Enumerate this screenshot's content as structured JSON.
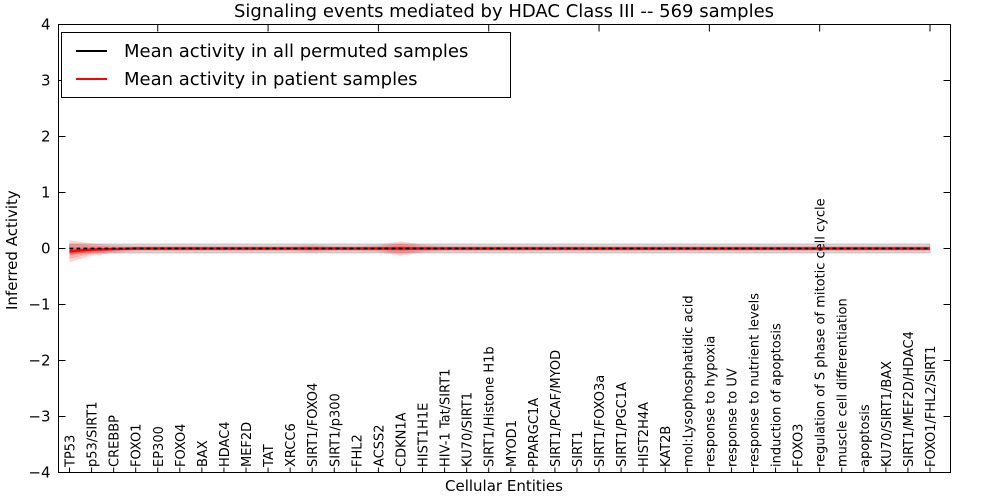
{
  "title": "Signaling events mediated by HDAC Class III -- 569 samples",
  "axes": {
    "xlabel": "Cellular Entities",
    "ylabel": "Inferred Activity"
  },
  "chart_data": {
    "type": "line",
    "title": "Signaling events mediated by HDAC Class III -- 569 samples",
    "xlabel": "Cellular Entities",
    "ylabel": "Inferred Activity",
    "ylim": [
      -4,
      4
    ],
    "ytick_values": [
      4,
      3,
      2,
      1,
      0,
      -1,
      -2,
      -3,
      -4
    ],
    "ytick_labels": [
      "4",
      "3",
      "2",
      "1",
      "0",
      "−1",
      "−2",
      "−3",
      "−4"
    ],
    "xtick_major_every": 5,
    "grid": false,
    "legend_position": "upper left",
    "categories": [
      "TP53",
      "p53/SIRT1",
      "CREBBP",
      "FOXO1",
      "EP300",
      "FOXO4",
      "BAX",
      "HDAC4",
      "MEF2D",
      "TAT",
      "XRCC6",
      "SIRT1/FOXO4",
      "SIRT1/p300",
      "FHL2",
      "ACSS2",
      "CDKN1A",
      "HIST1H1E",
      "HIV-1 Tat/SIRT1",
      "KU70/SIRT1",
      "SIRT1/Histone H1b",
      "MYOD1",
      "PPARGC1A",
      "SIRT1/PCAF/MYOD",
      "SIRT1",
      "SIRT1/FOXO3a",
      "SIRT1/PGC1A",
      "HIST2H4A",
      "KAT2B",
      "mol:Lysophosphatidic acid",
      "response to hypoxia",
      "response to UV",
      "response to nutrient levels",
      "induction of apoptosis",
      "FOXO3",
      "regulation of S phase of mitotic cell cycle",
      "muscle cell differentiation",
      "apoptosis",
      "KU70/SIRT1/BAX",
      "SIRT1/MEF2D/HDAC4",
      "FOXO1/FHL2/SIRT1"
    ],
    "series": [
      {
        "name": "Mean activity in all permuted samples",
        "color": "#000000",
        "line_style": "dashed",
        "values": [
          0,
          0,
          0,
          0,
          0,
          0,
          0,
          0,
          0,
          0,
          0,
          0,
          0,
          0,
          0,
          0,
          0,
          0,
          0,
          0,
          0,
          0,
          0,
          0,
          0,
          0,
          0,
          0,
          0,
          0,
          0,
          0,
          0,
          0,
          0,
          0,
          0,
          0,
          0,
          0
        ],
        "std_band": [
          0.08,
          0.08,
          0.08,
          0.08,
          0.08,
          0.08,
          0.08,
          0.08,
          0.08,
          0.08,
          0.08,
          0.08,
          0.08,
          0.08,
          0.08,
          0.08,
          0.08,
          0.08,
          0.08,
          0.08,
          0.08,
          0.08,
          0.08,
          0.08,
          0.08,
          0.08,
          0.08,
          0.08,
          0.08,
          0.08,
          0.08,
          0.08,
          0.08,
          0.08,
          0.08,
          0.08,
          0.08,
          0.08,
          0.08,
          0.08
        ]
      },
      {
        "name": "Mean activity in patient samples",
        "color": "#ff0000",
        "line_style": "solid",
        "values": [
          -0.05,
          -0.02,
          -0.01,
          0,
          0,
          0,
          0,
          0,
          0,
          0,
          0,
          0,
          0,
          0,
          0,
          0,
          0,
          0,
          0,
          0,
          0,
          0,
          0,
          0,
          0,
          0,
          0,
          0,
          0,
          0,
          0,
          0,
          0,
          0,
          0,
          0,
          0,
          0,
          0,
          0
        ],
        "std_band": [
          0.2,
          0.11,
          0.07,
          0.05,
          0.05,
          0.05,
          0.05,
          0.05,
          0.05,
          0.05,
          0.05,
          0.07,
          0.05,
          0.05,
          0.06,
          0.13,
          0.07,
          0.05,
          0.05,
          0.05,
          0.05,
          0.05,
          0.05,
          0.05,
          0.05,
          0.05,
          0.05,
          0.05,
          0.05,
          0.05,
          0.05,
          0.05,
          0.05,
          0.05,
          0.05,
          0.05,
          0.05,
          0.05,
          0.05,
          0.05
        ]
      }
    ]
  }
}
